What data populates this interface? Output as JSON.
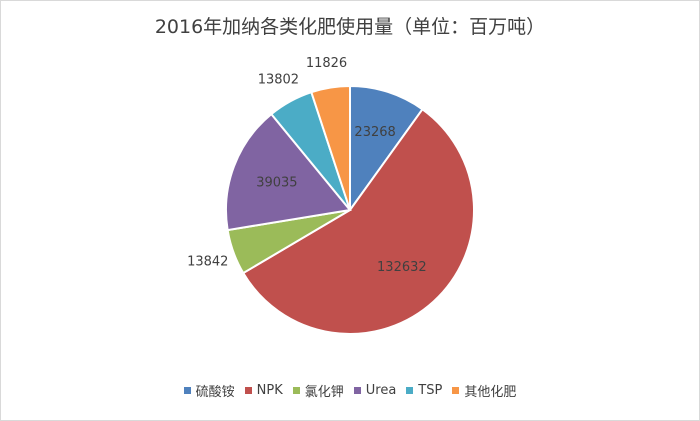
{
  "chart_data": {
    "type": "pie",
    "title": "2016年加纳各类化肥使用量（单位：百万吨）",
    "legend_position": "bottom",
    "slices": [
      {
        "label": "硫酸铵",
        "value": 23268,
        "color": "#4f81bd"
      },
      {
        "label": "NPK",
        "value": 132632,
        "color": "#c0504d"
      },
      {
        "label": "氯化钾",
        "value": 13842,
        "color": "#9bbb59"
      },
      {
        "label": "Urea",
        "value": 39035,
        "color": "#8064a2"
      },
      {
        "label": "TSP",
        "value": 13802,
        "color": "#4bacc6"
      },
      {
        "label": "其他化肥",
        "value": 11826,
        "color": "#f79646"
      }
    ]
  }
}
